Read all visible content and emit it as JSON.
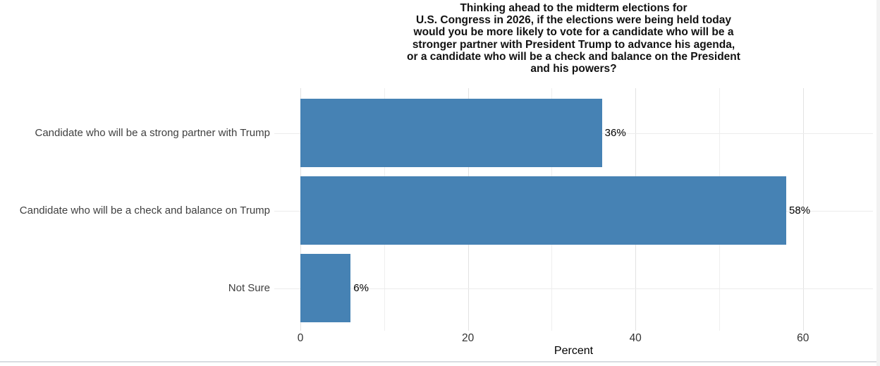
{
  "page": {
    "background": "#ffffff",
    "bottom_border_color": "#d9dce1",
    "right_edge_color": "#f2f2f2"
  },
  "chart_data": {
    "type": "bar",
    "orientation": "horizontal",
    "title": "Thinking ahead to the midterm elections for\nU.S. Congress in 2026, if the elections were being held today\nwould you be more likely to vote for a candidate who will be a\nstronger partner with President Trump to advance his agenda,\nor a candidate who will be a check and balance on the President\nand his powers?",
    "categories": [
      "Candidate who will be a strong partner with Trump",
      "Candidate who will be a check and balance on Trump",
      "Not Sure"
    ],
    "values": [
      36,
      58,
      6
    ],
    "value_labels": [
      "36%",
      "58%",
      "6%"
    ],
    "xlabel": "Percent",
    "x_ticks_major": [
      0,
      20,
      40,
      60
    ],
    "x_ticks_minor": [
      10,
      30,
      50
    ],
    "xlim": [
      0,
      62
    ],
    "bar_color": "#4682B4",
    "grid": true,
    "legend": "none"
  }
}
